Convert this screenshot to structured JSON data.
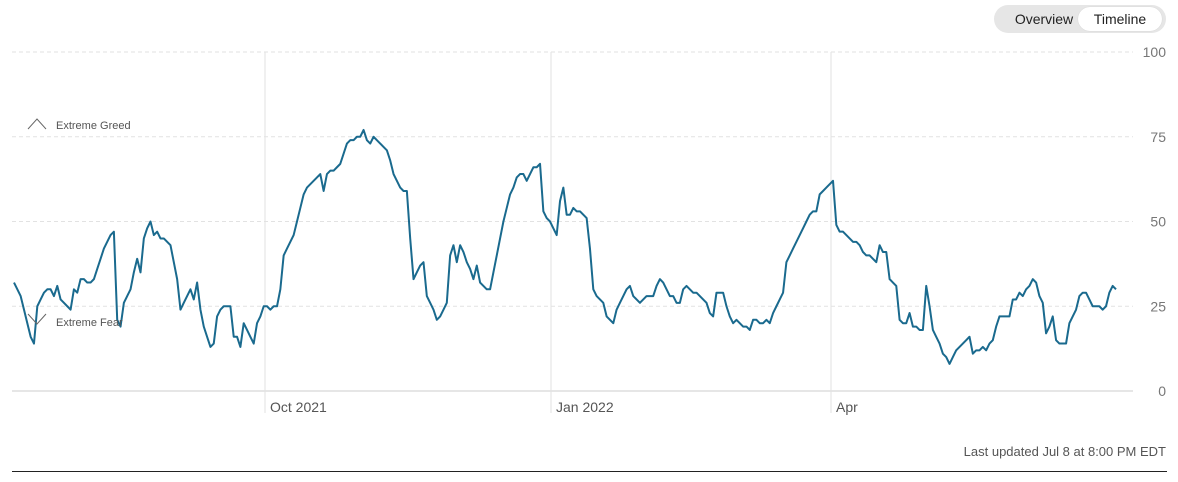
{
  "toggle": {
    "overview_label": "Overview",
    "timeline_label": "Timeline",
    "selected": "Timeline"
  },
  "footer": {
    "last_updated": "Last updated Jul 8 at 8:00 PM EDT"
  },
  "colors": {
    "line": "#1a6a8e",
    "grid": "#e2e2e2",
    "axis": "#cccccc",
    "annotation": "#666666"
  },
  "chart_data": {
    "type": "line",
    "ylim": [
      0,
      100
    ],
    "yticks": [
      100,
      75,
      50,
      25,
      0
    ],
    "xticks": [
      "Oct 2021",
      "Jan 2022",
      "Apr"
    ],
    "annotations": [
      "Extreme Greed",
      "Extreme Fear"
    ],
    "grid": true,
    "series": [
      {
        "values": [
          32,
          30,
          28,
          24,
          20,
          16,
          14,
          25,
          27,
          29,
          30,
          30,
          28,
          31,
          27,
          26,
          25,
          24,
          30,
          29,
          33,
          33,
          32,
          32,
          33,
          36,
          39,
          42,
          44,
          46,
          47,
          21,
          19,
          26,
          28,
          30,
          35,
          39,
          35,
          45,
          48,
          50,
          46,
          47,
          45,
          45,
          44,
          43,
          38,
          33,
          24,
          26,
          28,
          30,
          27,
          32,
          24,
          19,
          16,
          13,
          14,
          22,
          24,
          25,
          25,
          25,
          16,
          16,
          13,
          20,
          18,
          16,
          14,
          20,
          22,
          25,
          25,
          24,
          25,
          25,
          30,
          40,
          42,
          44,
          46,
          50,
          54,
          58,
          60,
          61,
          62,
          63,
          64,
          59,
          64,
          65,
          65,
          66,
          67,
          70,
          73,
          74,
          74,
          75,
          75,
          77,
          74,
          73,
          75,
          74,
          73,
          72,
          71,
          68,
          64,
          62,
          60,
          59,
          59,
          45,
          33,
          35,
          37,
          38,
          28,
          26,
          24,
          21,
          22,
          24,
          26,
          40,
          43,
          38,
          43,
          41,
          38,
          36,
          33,
          37,
          32,
          31,
          30,
          30,
          35,
          40,
          45,
          50,
          54,
          58,
          60,
          63,
          64,
          64,
          62,
          64,
          66,
          66,
          67,
          53,
          51,
          50,
          48,
          46,
          56,
          60,
          52,
          52,
          54,
          53,
          53,
          52,
          51,
          42,
          30,
          28,
          27,
          26,
          22,
          21,
          20,
          24,
          26,
          28,
          30,
          31,
          28,
          27,
          26,
          27,
          28,
          28,
          28,
          31,
          33,
          32,
          30,
          28,
          28,
          26,
          26,
          30,
          31,
          30,
          29,
          29,
          28,
          27,
          26,
          23,
          22,
          29,
          29,
          29,
          25,
          22,
          20,
          21,
          20,
          19,
          19,
          18,
          21,
          21,
          20,
          20,
          21,
          20,
          23,
          25,
          27,
          29,
          38,
          40,
          42,
          44,
          46,
          48,
          50,
          52,
          53,
          53,
          58,
          59,
          60,
          61,
          62,
          49,
          47,
          47,
          46,
          45,
          44,
          44,
          43,
          41,
          40,
          40,
          39,
          38,
          43,
          41,
          41,
          33,
          32,
          31,
          21,
          20,
          20,
          23,
          19,
          19,
          18,
          18,
          31,
          25,
          18,
          16,
          14,
          11,
          10,
          8,
          10,
          12,
          13,
          14,
          15,
          16,
          11,
          12,
          12,
          13,
          12,
          14,
          15,
          19,
          22,
          22,
          22,
          22,
          27,
          27,
          29,
          28,
          30,
          31,
          33,
          32,
          28,
          26,
          17,
          19,
          22,
          15,
          14,
          14,
          14,
          20,
          22,
          24,
          28,
          29,
          29,
          27,
          25,
          25,
          25,
          24,
          25,
          29,
          31,
          30
        ]
      }
    ]
  }
}
